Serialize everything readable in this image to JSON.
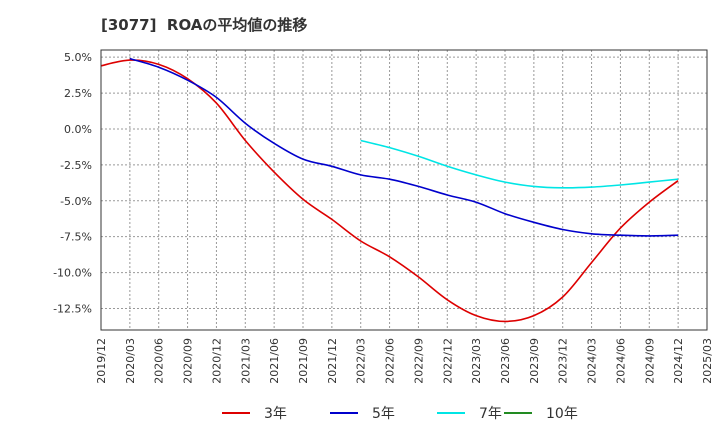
{
  "chart_data": {
    "type": "line",
    "title": "[3077]  ROAの平均値の推移",
    "xlabel": "",
    "ylabel": "",
    "x_ticks": [
      "2019/12",
      "2020/03",
      "2020/06",
      "2020/09",
      "2020/12",
      "2021/03",
      "2021/06",
      "2021/09",
      "2021/12",
      "2022/03",
      "2022/06",
      "2022/09",
      "2022/12",
      "2023/03",
      "2023/06",
      "2023/09",
      "2023/12",
      "2024/03",
      "2024/06",
      "2024/09",
      "2024/12",
      "2025/03"
    ],
    "y_ticks": [
      "5.0%",
      "2.5%",
      "0.0%",
      "-2.5%",
      "-5.0%",
      "-7.5%",
      "-10.0%",
      "-12.5%"
    ],
    "y_tick_values": [
      5.0,
      2.5,
      0.0,
      -2.5,
      -5.0,
      -7.5,
      -10.0,
      -12.5
    ],
    "ylim": [
      -14.0,
      5.5
    ],
    "grid": true,
    "legend_position": "bottom",
    "series": [
      {
        "name": "3年",
        "color": "#dd0000",
        "points": [
          [
            "2019/12",
            4.4
          ],
          [
            "2020/03",
            4.8
          ],
          [
            "2020/06",
            4.5
          ],
          [
            "2020/09",
            3.5
          ],
          [
            "2020/12",
            1.8
          ],
          [
            "2021/03",
            -0.8
          ],
          [
            "2021/06",
            -3.0
          ],
          [
            "2021/09",
            -4.9
          ],
          [
            "2021/12",
            -6.3
          ],
          [
            "2022/03",
            -7.8
          ],
          [
            "2022/06",
            -8.9
          ],
          [
            "2022/09",
            -10.3
          ],
          [
            "2022/12",
            -11.9
          ],
          [
            "2023/03",
            -13.0
          ],
          [
            "2023/06",
            -13.4
          ],
          [
            "2023/09",
            -13.0
          ],
          [
            "2023/12",
            -11.7
          ],
          [
            "2024/03",
            -9.3
          ],
          [
            "2024/06",
            -6.9
          ],
          [
            "2024/09",
            -5.1
          ],
          [
            "2024/12",
            -3.6
          ]
        ]
      },
      {
        "name": "5年",
        "color": "#0000cc",
        "points": [
          [
            "2020/03",
            4.9
          ],
          [
            "2020/06",
            4.3
          ],
          [
            "2020/09",
            3.4
          ],
          [
            "2020/12",
            2.2
          ],
          [
            "2021/03",
            0.4
          ],
          [
            "2021/06",
            -1.0
          ],
          [
            "2021/09",
            -2.1
          ],
          [
            "2021/12",
            -2.6
          ],
          [
            "2022/03",
            -3.2
          ],
          [
            "2022/06",
            -3.5
          ],
          [
            "2022/09",
            -4.0
          ],
          [
            "2022/12",
            -4.6
          ],
          [
            "2023/03",
            -5.1
          ],
          [
            "2023/06",
            -5.9
          ],
          [
            "2023/09",
            -6.5
          ],
          [
            "2023/12",
            -7.0
          ],
          [
            "2024/03",
            -7.3
          ],
          [
            "2024/06",
            -7.4
          ],
          [
            "2024/09",
            -7.45
          ],
          [
            "2024/12",
            -7.4
          ]
        ]
      },
      {
        "name": "7年",
        "color": "#00e5e5",
        "points": [
          [
            "2022/03",
            -0.8
          ],
          [
            "2022/06",
            -1.3
          ],
          [
            "2022/09",
            -1.9
          ],
          [
            "2022/12",
            -2.6
          ],
          [
            "2023/03",
            -3.2
          ],
          [
            "2023/06",
            -3.7
          ],
          [
            "2023/09",
            -4.0
          ],
          [
            "2023/12",
            -4.1
          ],
          [
            "2024/03",
            -4.05
          ],
          [
            "2024/06",
            -3.9
          ],
          [
            "2024/09",
            -3.7
          ],
          [
            "2024/12",
            -3.5
          ]
        ]
      },
      {
        "name": "10年",
        "color": "#228b22",
        "points": []
      }
    ]
  }
}
